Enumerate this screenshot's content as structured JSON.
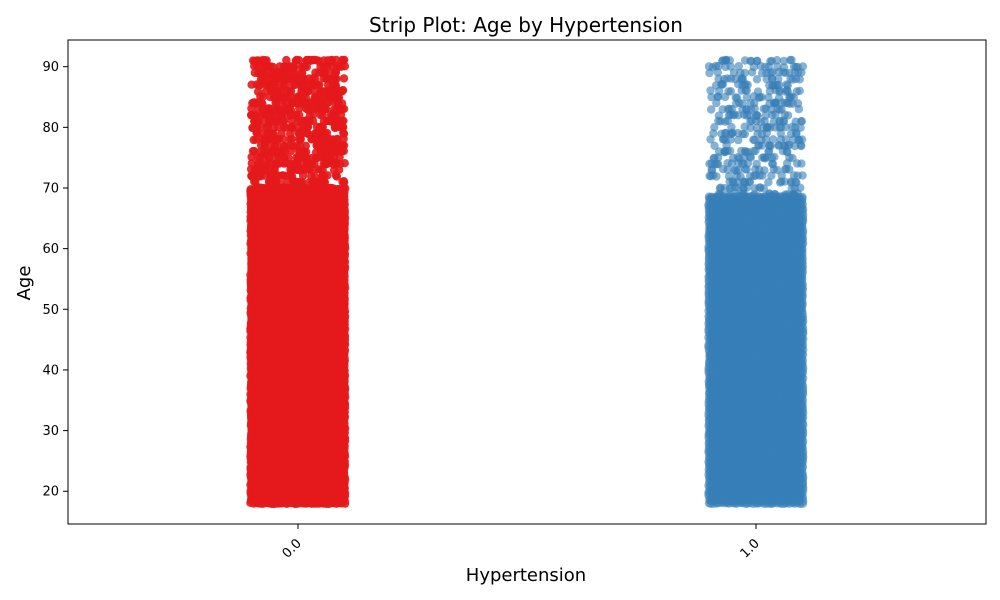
{
  "chart_data": {
    "type": "scatter",
    "title": "Strip Plot: Age by Hypertension",
    "xlabel": "Hypertension",
    "ylabel": "Age",
    "categories": [
      "0.0",
      "1.0"
    ],
    "ylim": [
      14.6,
      94.4
    ],
    "y_ticks": [
      "20",
      "30",
      "40",
      "50",
      "60",
      "70",
      "80",
      "90"
    ],
    "grid": false,
    "series": [
      {
        "category": "0.0",
        "color": "#e41a1c",
        "opacity": 0.9,
        "dense_age_range": [
          18,
          70
        ],
        "sparse_age_range": [
          70,
          91
        ],
        "sparse_density": 0.9
      },
      {
        "category": "1.0",
        "color": "#377eb8",
        "opacity": 0.6,
        "dense_age_range": [
          18,
          69
        ],
        "sparse_age_range": [
          69,
          91
        ],
        "sparse_density": 0.45
      }
    ]
  }
}
